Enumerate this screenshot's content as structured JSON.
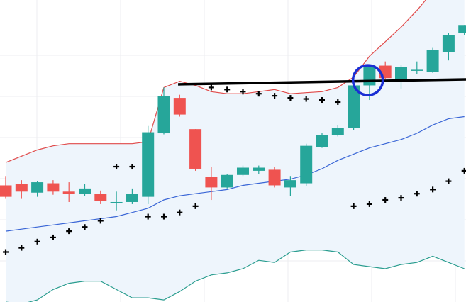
{
  "chart_data": {
    "type": "candlestick",
    "ylim": [
      -120,
      25
    ],
    "grid": true,
    "colors": {
      "up": "#26a69a",
      "down": "#ef5350",
      "band_upper": "#e04a4a",
      "band_middle": "#3a66d6",
      "band_lower": "#2a9d8f",
      "band_fill": "#eef5fc",
      "sar": "#000000",
      "trendline": "#000000",
      "highlight": "#1a2fd4"
    },
    "candles": [
      {
        "x": 0,
        "o": -64,
        "h": -59.5,
        "l": -70.5,
        "c": -69.5
      },
      {
        "x": 1,
        "o": -63.5,
        "h": -61.5,
        "l": -70.5,
        "c": -67
      },
      {
        "x": 2,
        "o": -67.5,
        "h": -62,
        "l": -69.5,
        "c": -62.5
      },
      {
        "x": 3,
        "o": -63,
        "h": -61.5,
        "l": -68.5,
        "c": -67
      },
      {
        "x": 4,
        "o": -67,
        "h": -62.5,
        "l": -72,
        "c": -68
      },
      {
        "x": 5,
        "o": -68,
        "h": -63.5,
        "l": -69,
        "c": -65.5
      },
      {
        "x": 6,
        "o": -68,
        "h": -66.5,
        "l": -73,
        "c": -71.5
      },
      {
        "x": 7,
        "o": -72,
        "h": -67,
        "l": -76,
        "c": -72
      },
      {
        "x": 8,
        "o": -72,
        "h": -65.5,
        "l": -73,
        "c": -68
      },
      {
        "x": 9,
        "o": -69.5,
        "h": -35.5,
        "l": -73,
        "c": -38.5
      },
      {
        "x": 10,
        "o": -39,
        "h": -17,
        "l": -39.5,
        "c": -21
      },
      {
        "x": 11,
        "o": -22,
        "h": -20.5,
        "l": -31,
        "c": -30
      },
      {
        "x": 12,
        "o": -37,
        "h": -37,
        "l": -57,
        "c": -56
      },
      {
        "x": 13,
        "o": -60,
        "h": -55,
        "l": -71,
        "c": -65
      },
      {
        "x": 14,
        "o": -65,
        "h": -58.5,
        "l": -65.5,
        "c": -59
      },
      {
        "x": 15,
        "o": -59,
        "h": -54.5,
        "l": -59.5,
        "c": -55.5
      },
      {
        "x": 16,
        "o": -57,
        "h": -54.5,
        "l": -58.5,
        "c": -55.5
      },
      {
        "x": 17,
        "o": -56.5,
        "h": -55,
        "l": -65,
        "c": -64
      },
      {
        "x": 18,
        "o": -65,
        "h": -59.5,
        "l": -69,
        "c": -61.5
      },
      {
        "x": 19,
        "o": -63,
        "h": -44,
        "l": -64.5,
        "c": -45
      },
      {
        "x": 20,
        "o": -45.5,
        "h": -39,
        "l": -46,
        "c": -40
      },
      {
        "x": 21,
        "o": -40,
        "h": -35,
        "l": -40.5,
        "c": -36.5
      },
      {
        "x": 22,
        "o": -36.5,
        "h": -15,
        "l": -37.5,
        "c": -16
      },
      {
        "x": 23,
        "o": -16,
        "h": -6.5,
        "l": -23,
        "c": -6.5
      },
      {
        "x": 24,
        "o": -6.5,
        "h": -4.5,
        "l": -13,
        "c": -12.5
      },
      {
        "x": 25,
        "o": -13,
        "h": -6,
        "l": -17.5,
        "c": -7
      },
      {
        "x": 26,
        "o": -8.5,
        "h": -4.5,
        "l": -10.5,
        "c": -8.5
      },
      {
        "x": 27,
        "o": -9.5,
        "h": 2,
        "l": -10,
        "c": 1
      },
      {
        "x": 28,
        "o": 0,
        "h": 9,
        "l": -4,
        "c": 8
      },
      {
        "x": 29,
        "o": 9,
        "h": 13,
        "l": 8,
        "c": 13
      }
    ],
    "sar": [
      {
        "x": 0,
        "y": -96
      },
      {
        "x": 1,
        "y": -94
      },
      {
        "x": 2,
        "y": -91
      },
      {
        "x": 3,
        "y": -89
      },
      {
        "x": 4,
        "y": -86
      },
      {
        "x": 5,
        "y": -84
      },
      {
        "x": 6,
        "y": -81
      },
      {
        "x": 7,
        "y": -55
      },
      {
        "x": 8,
        "y": -55
      },
      {
        "x": 9,
        "y": -79
      },
      {
        "x": 10,
        "y": -79
      },
      {
        "x": 11,
        "y": -77
      },
      {
        "x": 12,
        "y": -74
      },
      {
        "x": 13,
        "y": -17
      },
      {
        "x": 14,
        "y": -18
      },
      {
        "x": 15,
        "y": -19
      },
      {
        "x": 16,
        "y": -20
      },
      {
        "x": 17,
        "y": -21
      },
      {
        "x": 18,
        "y": -22
      },
      {
        "x": 19,
        "y": -22.5
      },
      {
        "x": 20,
        "y": -23
      },
      {
        "x": 21,
        "y": -24
      },
      {
        "x": 22,
        "y": -74
      },
      {
        "x": 23,
        "y": -73
      },
      {
        "x": 24,
        "y": -71
      },
      {
        "x": 25,
        "y": -70
      },
      {
        "x": 26,
        "y": -68
      },
      {
        "x": 27,
        "y": -66
      },
      {
        "x": 28,
        "y": -62
      },
      {
        "x": 29,
        "y": -57
      }
    ],
    "bands": {
      "upper": [
        -53,
        -50,
        -47,
        -45,
        -44,
        -44,
        -44,
        -44,
        -44,
        -43,
        -17,
        -14,
        -16,
        -19,
        -20,
        -20,
        -19,
        -18,
        -20,
        -19.5,
        -19,
        -17,
        -12,
        -2,
        5,
        12,
        20,
        29,
        38,
        46
      ],
      "middle": [
        -86,
        -85,
        -84,
        -83,
        -82,
        -81,
        -80,
        -79,
        -77,
        -75,
        -71,
        -69,
        -68,
        -67,
        -66,
        -64,
        -63,
        -62,
        -61,
        -59,
        -56,
        -52,
        -49,
        -46,
        -44,
        -42,
        -39,
        -35,
        -32,
        -31
      ],
      "lower": [
        -120,
        -121,
        -119,
        -114,
        -111,
        -110,
        -110,
        -114,
        -118,
        -118,
        -119,
        -115,
        -110,
        -107,
        -106,
        -104,
        -100,
        -101,
        -96,
        -95,
        -95,
        -96,
        -102,
        -103,
        -104,
        -102,
        -101,
        -98,
        -101,
        -104
      ]
    },
    "trendline": {
      "x1": 10.9,
      "y1": -15.5,
      "x2": 30,
      "y2": -13
    },
    "highlight": {
      "x": 22.9,
      "y": -13.5,
      "radius": 2
    }
  }
}
